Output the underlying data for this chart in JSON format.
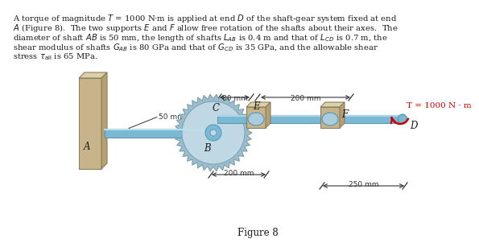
{
  "figure_label": "Figure 8",
  "label_A": "A",
  "label_B": "B",
  "label_C": "C",
  "label_D": "D",
  "label_E": "E",
  "label_F": "F",
  "dim_50mm": "50 mm",
  "dim_80mm": "80 mm",
  "dim_200mm_top": "200 mm",
  "dim_200mm_bot": "200 mm",
  "dim_250mm": "250 mm",
  "torque_label": "T = 1000 N · m",
  "text_line1": "A torque of magnitude T = 1000 N·m is applied at end D of the shaft-gear system fixed at end",
  "text_line2": "A (Figure 8).  The two supports E and F allow free rotation of the shafts about their axes.  The",
  "text_line3": "diameter of shaft AB is 50 mm, the length of shafts L_{AB} is 0.4 m and that of L_{CD} is 0.7 m, the",
  "text_line4": "shear modulus of shafts G_{AB} is 80 GPa and that of G_{CD} is 35 GPa, and the allowable shear",
  "text_line5": "stress \\tau_{all} is 65 MPa.",
  "shaft_color": "#7ab8d4",
  "shaft_light": "#b8dff0",
  "shaft_dark": "#5a9ab8",
  "gear_color": "#9bbdcc",
  "gear_light": "#c0d8e4",
  "gear_dark": "#7a9fb0",
  "wall_face": "#c8b48a",
  "wall_top": "#ddd0a8",
  "wall_side": "#b89e70",
  "support_face": "#c8b48a",
  "support_top": "#ddd0a8",
  "support_side": "#b89e70",
  "bg_color": "#ffffff",
  "text_color": "#1a1a1a",
  "torque_color": "#cc0000",
  "dim_color": "#333333"
}
